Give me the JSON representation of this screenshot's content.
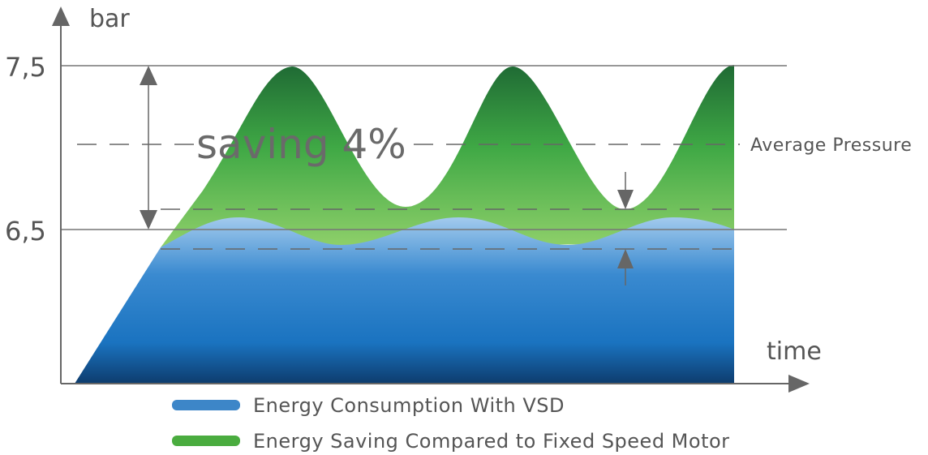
{
  "axes": {
    "y_label": "bar",
    "x_label": "time",
    "y_ticks": [
      "7,5",
      "6,5"
    ]
  },
  "annotations": {
    "saving": "saving 4%",
    "average_pressure": "Average Pressure"
  },
  "legend": [
    {
      "label": "Energy Consumption With VSD",
      "color": "#3d86c8"
    },
    {
      "label": "Energy Saving Compared to Fixed Speed Motor",
      "color": "#4aac3f"
    }
  ],
  "colors": {
    "axis": "#666666",
    "green_dark": "#1f6a34",
    "green_light": "#7cc95a",
    "blue_light": "#9cc7eb",
    "blue_mid": "#1a73c0",
    "blue_dark": "#0d3d70"
  }
}
